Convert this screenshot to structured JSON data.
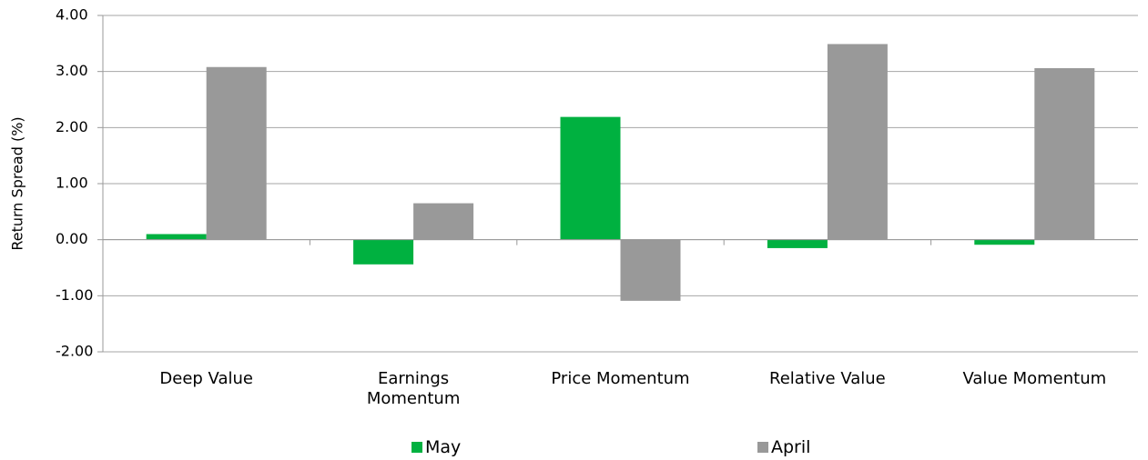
{
  "chart_data": {
    "type": "bar",
    "y_label": "Return Spread (%)",
    "categories": [
      "Deep Value",
      "Earnings Momentum",
      "Price Momentum",
      "Relative Value",
      "Value Momentum"
    ],
    "series": [
      {
        "name": "May",
        "color": "#00b140",
        "values": [
          0.1,
          -0.44,
          2.19,
          -0.15,
          -0.09
        ]
      },
      {
        "name": "April",
        "color": "#999999",
        "values": [
          3.08,
          0.65,
          -1.09,
          3.49,
          3.06
        ]
      }
    ],
    "ylim": [
      -2,
      4
    ],
    "yticks": [
      {
        "value": -2,
        "label": "-2.00"
      },
      {
        "value": -1,
        "label": "-1.00"
      },
      {
        "value": 0,
        "label": "0.00"
      },
      {
        "value": 1,
        "label": "1.00"
      },
      {
        "value": 2,
        "label": "2.00"
      },
      {
        "value": 3,
        "label": "3.00"
      },
      {
        "value": 4,
        "label": "4.00"
      }
    ],
    "grid": true,
    "legend": "bottom"
  }
}
